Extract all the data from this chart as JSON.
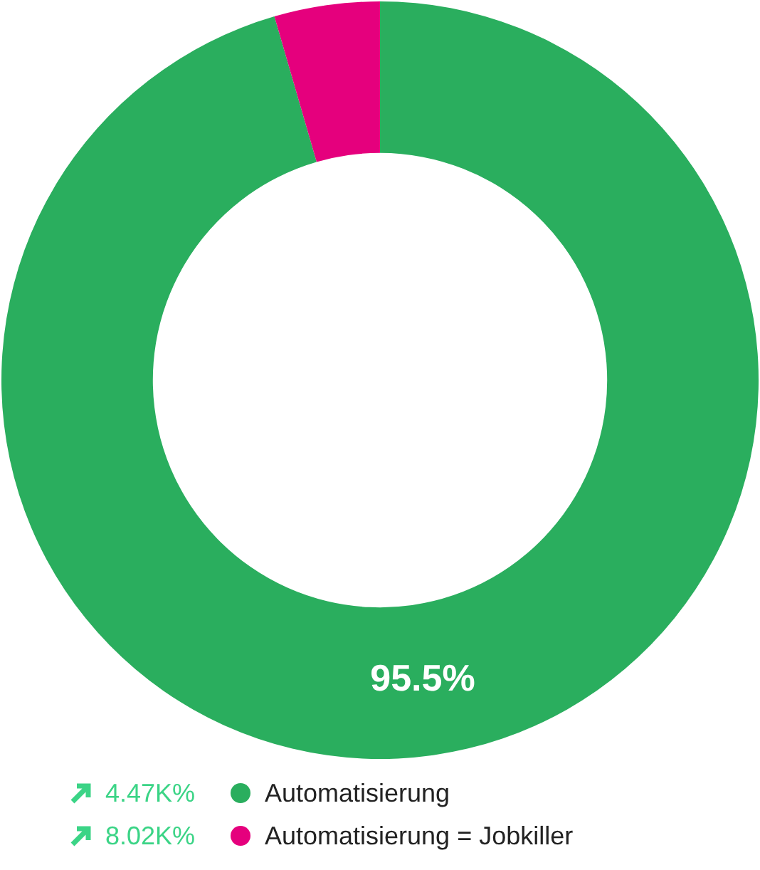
{
  "chart_data": {
    "type": "donut",
    "categories": [
      "Automatisierung",
      "Automatisierung = Jobkiller"
    ],
    "values": [
      95.5,
      4.5
    ],
    "colors": [
      "#2aae5e",
      "#e5007d"
    ],
    "value_labels": [
      "95.5%",
      null
    ],
    "annotations": [
      "4.47K%",
      "8.02K%"
    ],
    "legend": "bottom"
  }
}
